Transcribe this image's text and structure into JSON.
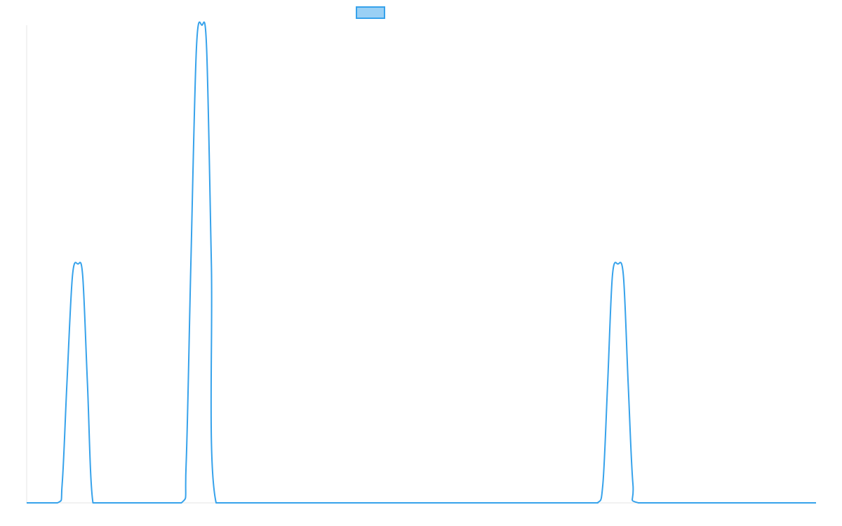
{
  "chart_data": {
    "type": "line",
    "title": "",
    "xlabel": "",
    "ylabel": "",
    "grid": false,
    "legend_position": "top-center",
    "xlim": [
      0,
      100
    ],
    "ylim": [
      0,
      2
    ],
    "series": [
      {
        "name": "",
        "color": "#36A2EB",
        "fill_color": "#9AD0F5",
        "x": [
          0,
          3.9,
          4.5,
          5.1,
          5.8,
          6.5,
          7.1,
          7.7,
          8.4,
          10.0,
          15.0,
          19.6,
          20.2,
          20.8,
          21.5,
          22.2,
          22.8,
          23.4,
          24.0,
          30.0,
          50.0,
          70.0,
          72.3,
          73.0,
          73.6,
          74.2,
          74.9,
          75.6,
          76.2,
          76.8,
          77.5,
          85.0,
          100.0
        ],
        "y": [
          0,
          0,
          0.08,
          0.5,
          0.95,
          1.0,
          0.95,
          0.5,
          0,
          0,
          0,
          0,
          0.16,
          1.0,
          1.9,
          2.0,
          1.9,
          1.0,
          0,
          0,
          0,
          0,
          0,
          0.08,
          0.5,
          0.95,
          1.0,
          0.95,
          0.5,
          0.08,
          0,
          0,
          0
        ]
      }
    ]
  }
}
